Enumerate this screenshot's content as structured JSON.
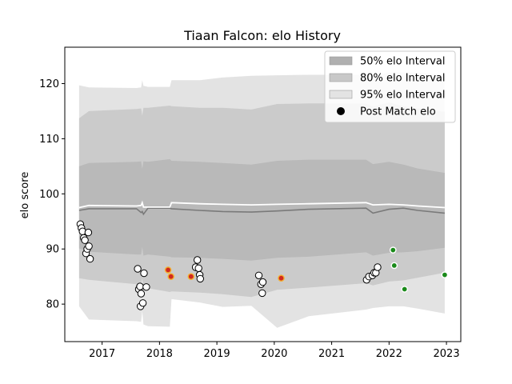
{
  "chart_data": {
    "type": "area",
    "title": "Tiaan Falcon: elo History",
    "xlabel": "",
    "ylabel": "elo score",
    "xlim": [
      2016.35,
      2023.25
    ],
    "ylim": [
      73.2,
      126.6
    ],
    "x_ticks": [
      2017,
      2018,
      2019,
      2020,
      2021,
      2022,
      2023
    ],
    "x_tick_labels": [
      "2017",
      "2018",
      "2019",
      "2020",
      "2021",
      "2022",
      "2023"
    ],
    "y_ticks": [
      80,
      90,
      100,
      110,
      120
    ],
    "y_tick_labels": [
      "80",
      "90",
      "100",
      "110",
      "120"
    ],
    "grid": false,
    "legend_position": "top-right",
    "legend": [
      {
        "label": "50% elo Interval",
        "kind": "patch",
        "color": "#b0b0b0"
      },
      {
        "label": "80% elo Interval",
        "kind": "patch",
        "color": "#c8c8c8"
      },
      {
        "label": "95% elo Interval",
        "kind": "patch",
        "color": "#e3e3e3"
      },
      {
        "label": "Post Match elo",
        "kind": "marker",
        "color": "#000000"
      }
    ],
    "bands": {
      "x": [
        2016.6,
        2016.77,
        2017.6,
        2017.68,
        2017.7,
        2017.72,
        2017.8,
        2018.18,
        2018.21,
        2018.7,
        2019.1,
        2019.6,
        2020.05,
        2020.6,
        2021.6,
        2021.72,
        2022.0,
        2022.25,
        2022.5,
        2022.97
      ],
      "mean": [
        97.5,
        97.9,
        97.8,
        97.9,
        98.4,
        97.6,
        97.6,
        97.6,
        98.4,
        98.2,
        98.1,
        98.0,
        98.1,
        98.2,
        98.4,
        98.0,
        98.1,
        98.0,
        97.8,
        97.5
      ],
      "p50_lo": [
        90.1,
        89.5,
        89.0,
        89.0,
        90.4,
        88.8,
        89.0,
        88.6,
        88.5,
        88.4,
        88.2,
        87.9,
        88.4,
        88.6,
        89.4,
        88.8,
        89.3,
        89.4,
        89.6,
        90.2
      ],
      "p50_hi": [
        105.0,
        105.6,
        105.8,
        105.9,
        104.5,
        105.9,
        105.8,
        106.3,
        106.0,
        105.8,
        105.6,
        105.3,
        106.0,
        106.2,
        106.2,
        105.4,
        105.8,
        105.3,
        104.6,
        103.8
      ],
      "p80_lo": [
        84.7,
        84.4,
        83.6,
        83.5,
        84.7,
        83.1,
        82.9,
        82.2,
        82.3,
        82.1,
        81.8,
        81.3,
        82.6,
        83.0,
        83.8,
        83.4,
        84.1,
        84.3,
        84.8,
        85.7
      ],
      "p80_hi": [
        113.7,
        115.0,
        115.4,
        115.5,
        114.2,
        115.6,
        115.6,
        116.0,
        115.9,
        115.6,
        115.6,
        115.3,
        116.3,
        116.4,
        116.4,
        115.8,
        116.6,
        115.9,
        115.5,
        114.9
      ],
      "p95_lo": [
        79.6,
        77.2,
        76.9,
        76.8,
        78.8,
        76.3,
        76.0,
        75.9,
        80.9,
        80.3,
        79.5,
        79.7,
        75.7,
        77.8,
        79.0,
        79.3,
        79.6,
        79.6,
        79.2,
        78.3
      ],
      "p95_hi": [
        119.7,
        119.3,
        119.2,
        119.3,
        120.6,
        119.6,
        119.4,
        119.4,
        120.6,
        120.6,
        121.1,
        121.4,
        121.5,
        121.6,
        121.6,
        121.4,
        122.0,
        122.0,
        122.0,
        121.6
      ],
      "dark_mean": [
        97.0,
        97.3,
        97.3,
        96.6,
        96.8,
        96.3,
        97.4,
        97.4,
        97.3,
        97.0,
        96.8,
        96.7,
        96.9,
        97.2,
        97.4,
        96.5,
        97.2,
        97.4,
        97.0,
        96.5
      ]
    },
    "series": [
      {
        "kind": "post_match",
        "color": "#ffffff",
        "edge": "#000000",
        "points": [
          [
            2016.62,
            94.5
          ],
          [
            2016.64,
            93.8
          ],
          [
            2016.66,
            93.2
          ],
          [
            2016.68,
            92.0
          ],
          [
            2016.7,
            91.6
          ],
          [
            2016.72,
            89.2
          ],
          [
            2016.74,
            90.0
          ],
          [
            2016.76,
            93.0
          ],
          [
            2016.77,
            90.5
          ],
          [
            2016.79,
            88.2
          ],
          [
            2017.62,
            86.4
          ],
          [
            2017.64,
            82.7
          ],
          [
            2017.66,
            83.2
          ],
          [
            2017.67,
            79.6
          ],
          [
            2017.68,
            81.9
          ],
          [
            2017.71,
            80.2
          ],
          [
            2017.73,
            85.6
          ],
          [
            2017.77,
            83.1
          ],
          [
            2018.66,
            88.0
          ],
          [
            2018.63,
            86.7
          ],
          [
            2018.68,
            86.5
          ],
          [
            2018.7,
            85.3
          ],
          [
            2018.71,
            84.6
          ],
          [
            2019.73,
            85.2
          ],
          [
            2019.77,
            83.6
          ],
          [
            2019.8,
            84.0
          ],
          [
            2019.79,
            82.0
          ],
          [
            2021.61,
            84.4
          ],
          [
            2021.65,
            85.0
          ],
          [
            2021.71,
            85.2
          ],
          [
            2021.74,
            85.7
          ],
          [
            2021.77,
            85.7
          ],
          [
            2021.8,
            86.7
          ]
        ]
      },
      {
        "kind": "highlight",
        "color": "#d12a1f",
        "edge": "#f3b233",
        "points": [
          [
            2018.15,
            86.2
          ],
          [
            2018.2,
            85.0
          ],
          [
            2018.55,
            85.0
          ],
          [
            2020.12,
            84.7
          ]
        ]
      },
      {
        "kind": "upcoming",
        "color": "#1a8a1a",
        "edge": "#ffffff",
        "points": [
          [
            2022.07,
            89.8
          ],
          [
            2022.09,
            87.0
          ],
          [
            2022.27,
            82.7
          ],
          [
            2022.97,
            85.3
          ]
        ]
      }
    ]
  }
}
